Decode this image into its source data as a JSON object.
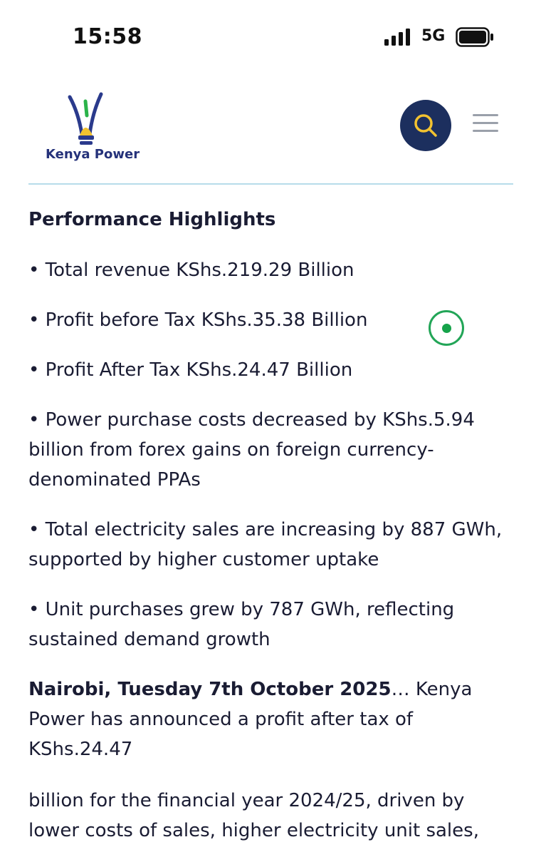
{
  "status_bar": {
    "time": "15:58",
    "network": "5G",
    "signal_icon": "cellular-signal-icon",
    "battery_icon": "battery-icon"
  },
  "header": {
    "logo_text": "Kenya Power",
    "search_icon": "search-icon",
    "menu_icon": "hamburger-menu-icon",
    "accent_color": "#1c2f5e",
    "icon_color": "#f2c230"
  },
  "article": {
    "heading": "Performance Highlights",
    "bullets": [
      "• Total revenue KShs.219.29 Billion",
      "• Profit before Tax KShs.35.38 Billion",
      "• Profit After Tax KShs.24.47 Billion",
      "• Power purchase costs decreased by KShs.5.94 billion from forex gains on foreign currency-denominated PPAs",
      "• Total electricity sales are increasing by 887 GWh, supported by higher customer uptake",
      "• Unit purchases grew by 787 GWh, reflecting sustained demand growth"
    ],
    "dateline_bold": "Nairobi, Tuesday 7th October 2025",
    "dateline_rest": "… Kenya Power has announced a profit after tax of KShs.24.47",
    "paragraph2": "billion for the financial year 2024/25, driven by lower costs of sales, higher electricity unit sales,"
  },
  "overlay": {
    "record_icon": "screen-record-icon"
  }
}
